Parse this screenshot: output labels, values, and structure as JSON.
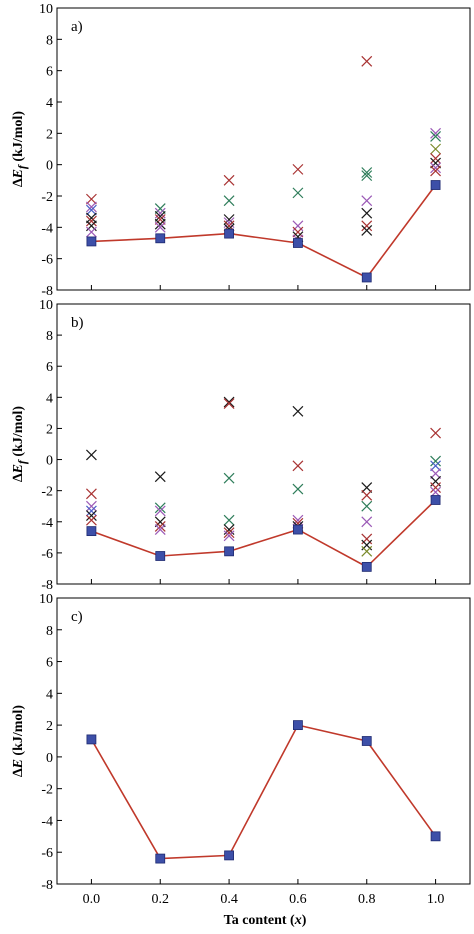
{
  "chart_data": {
    "type": "scatter",
    "x_ticks": [
      "0.0",
      "0.2",
      "0.4",
      "0.6",
      "0.8",
      "1.0"
    ],
    "xlabel_bold": "Ta content (",
    "xlabel_italic": "x",
    "xlabel_close": ")",
    "xlim": [
      -0.1,
      1.1
    ],
    "ylim": [
      -8,
      10
    ],
    "y_ticks": [
      "-8",
      "-6",
      "-4",
      "-2",
      "0",
      "2",
      "4",
      "6",
      "8",
      "10"
    ],
    "marker_colors": {
      "line": "#c0392b",
      "square": "#3d4fa8",
      "black": "#1a1a1a",
      "red": "#a83232",
      "green": "#2e7d5a",
      "purple": "#9b59b6",
      "blue": "#4a5fc8",
      "olive": "#7a8a2a"
    },
    "panels": [
      {
        "label": "a)",
        "ylabel_prefix": "∆",
        "ylabel_var": "E",
        "ylabel_sub": "f",
        "ylabel_unit": " (kJ/mol)",
        "line": {
          "x": [
            0.0,
            0.2,
            0.4,
            0.6,
            0.8,
            1.0
          ],
          "y": [
            -4.9,
            -4.7,
            -4.4,
            -5.0,
            -7.2,
            -1.3
          ]
        },
        "crosses": [
          {
            "x": 0.0,
            "y": -2.2,
            "c": "red"
          },
          {
            "x": 0.0,
            "y": -2.7,
            "c": "purple"
          },
          {
            "x": 0.0,
            "y": -2.9,
            "c": "blue"
          },
          {
            "x": 0.0,
            "y": -3.4,
            "c": "black"
          },
          {
            "x": 0.0,
            "y": -3.6,
            "c": "red"
          },
          {
            "x": 0.0,
            "y": -3.9,
            "c": "black"
          },
          {
            "x": 0.0,
            "y": -4.3,
            "c": "purple"
          },
          {
            "x": 0.2,
            "y": -2.8,
            "c": "green"
          },
          {
            "x": 0.2,
            "y": -3.1,
            "c": "purple"
          },
          {
            "x": 0.2,
            "y": -3.3,
            "c": "black"
          },
          {
            "x": 0.2,
            "y": -3.5,
            "c": "red"
          },
          {
            "x": 0.2,
            "y": -3.8,
            "c": "black"
          },
          {
            "x": 0.2,
            "y": -4.0,
            "c": "purple"
          },
          {
            "x": 0.4,
            "y": -1.0,
            "c": "red"
          },
          {
            "x": 0.4,
            "y": -2.3,
            "c": "green"
          },
          {
            "x": 0.4,
            "y": -3.5,
            "c": "black"
          },
          {
            "x": 0.4,
            "y": -3.7,
            "c": "purple"
          },
          {
            "x": 0.4,
            "y": -3.9,
            "c": "red"
          },
          {
            "x": 0.4,
            "y": -4.1,
            "c": "black"
          },
          {
            "x": 0.6,
            "y": -0.3,
            "c": "red"
          },
          {
            "x": 0.6,
            "y": -1.8,
            "c": "green"
          },
          {
            "x": 0.6,
            "y": -3.9,
            "c": "purple"
          },
          {
            "x": 0.6,
            "y": -4.3,
            "c": "red"
          },
          {
            "x": 0.6,
            "y": -4.6,
            "c": "black"
          },
          {
            "x": 0.6,
            "y": -4.8,
            "c": "purple"
          },
          {
            "x": 0.8,
            "y": 6.6,
            "c": "red"
          },
          {
            "x": 0.8,
            "y": -0.5,
            "c": "green"
          },
          {
            "x": 0.8,
            "y": -0.7,
            "c": "green"
          },
          {
            "x": 0.8,
            "y": -2.3,
            "c": "purple"
          },
          {
            "x": 0.8,
            "y": -3.1,
            "c": "black"
          },
          {
            "x": 0.8,
            "y": -3.9,
            "c": "red"
          },
          {
            "x": 0.8,
            "y": -4.2,
            "c": "black"
          },
          {
            "x": 1.0,
            "y": 2.0,
            "c": "purple"
          },
          {
            "x": 1.0,
            "y": 1.8,
            "c": "green"
          },
          {
            "x": 1.0,
            "y": 1.0,
            "c": "olive"
          },
          {
            "x": 1.0,
            "y": 0.4,
            "c": "red"
          },
          {
            "x": 1.0,
            "y": 0.1,
            "c": "black"
          },
          {
            "x": 1.0,
            "y": -0.2,
            "c": "purple"
          },
          {
            "x": 1.0,
            "y": -0.4,
            "c": "red"
          }
        ]
      },
      {
        "label": "b)",
        "ylabel_prefix": "∆",
        "ylabel_var": "E",
        "ylabel_sub": "f",
        "ylabel_unit": " (kJ/mol)",
        "line": {
          "x": [
            0.0,
            0.2,
            0.4,
            0.6,
            0.8,
            1.0
          ],
          "y": [
            -4.6,
            -6.2,
            -5.9,
            -4.5,
            -6.9,
            -2.6
          ]
        },
        "crosses": [
          {
            "x": 0.0,
            "y": 0.3,
            "c": "black"
          },
          {
            "x": 0.0,
            "y": -2.2,
            "c": "red"
          },
          {
            "x": 0.0,
            "y": -3.0,
            "c": "purple"
          },
          {
            "x": 0.0,
            "y": -3.3,
            "c": "blue"
          },
          {
            "x": 0.0,
            "y": -3.6,
            "c": "black"
          },
          {
            "x": 0.0,
            "y": -3.9,
            "c": "red"
          },
          {
            "x": 0.2,
            "y": -1.1,
            "c": "black"
          },
          {
            "x": 0.2,
            "y": -3.1,
            "c": "green"
          },
          {
            "x": 0.2,
            "y": -3.3,
            "c": "purple"
          },
          {
            "x": 0.2,
            "y": -4.0,
            "c": "black"
          },
          {
            "x": 0.2,
            "y": -4.3,
            "c": "red"
          },
          {
            "x": 0.2,
            "y": -4.5,
            "c": "purple"
          },
          {
            "x": 0.4,
            "y": 3.7,
            "c": "black"
          },
          {
            "x": 0.4,
            "y": 3.6,
            "c": "red"
          },
          {
            "x": 0.4,
            "y": -1.2,
            "c": "green"
          },
          {
            "x": 0.4,
            "y": -3.9,
            "c": "green"
          },
          {
            "x": 0.4,
            "y": -4.5,
            "c": "black"
          },
          {
            "x": 0.4,
            "y": -4.7,
            "c": "red"
          },
          {
            "x": 0.4,
            "y": -4.9,
            "c": "purple"
          },
          {
            "x": 0.6,
            "y": 3.1,
            "c": "black"
          },
          {
            "x": 0.6,
            "y": -0.4,
            "c": "red"
          },
          {
            "x": 0.6,
            "y": -1.9,
            "c": "green"
          },
          {
            "x": 0.6,
            "y": -3.9,
            "c": "purple"
          },
          {
            "x": 0.6,
            "y": -4.1,
            "c": "red"
          },
          {
            "x": 0.6,
            "y": -4.3,
            "c": "black"
          },
          {
            "x": 0.8,
            "y": -1.8,
            "c": "black"
          },
          {
            "x": 0.8,
            "y": -2.3,
            "c": "red"
          },
          {
            "x": 0.8,
            "y": -3.0,
            "c": "green"
          },
          {
            "x": 0.8,
            "y": -4.0,
            "c": "purple"
          },
          {
            "x": 0.8,
            "y": -5.1,
            "c": "red"
          },
          {
            "x": 0.8,
            "y": -5.5,
            "c": "black"
          },
          {
            "x": 0.8,
            "y": -5.9,
            "c": "olive"
          },
          {
            "x": 1.0,
            "y": 1.7,
            "c": "red"
          },
          {
            "x": 1.0,
            "y": -0.1,
            "c": "green"
          },
          {
            "x": 1.0,
            "y": -0.4,
            "c": "blue"
          },
          {
            "x": 1.0,
            "y": -0.9,
            "c": "purple"
          },
          {
            "x": 1.0,
            "y": -1.4,
            "c": "black"
          },
          {
            "x": 1.0,
            "y": -1.8,
            "c": "red"
          },
          {
            "x": 1.0,
            "y": -2.1,
            "c": "purple"
          }
        ]
      },
      {
        "label": "c)",
        "ylabel_prefix": "∆",
        "ylabel_var": "E",
        "ylabel_sub": "",
        "ylabel_unit": " (kJ/mol)",
        "line": {
          "x": [
            0.0,
            0.2,
            0.4,
            0.6,
            0.8,
            1.0
          ],
          "y": [
            1.1,
            -6.4,
            -6.2,
            2.0,
            1.0,
            -5.0
          ]
        },
        "crosses": []
      }
    ]
  }
}
